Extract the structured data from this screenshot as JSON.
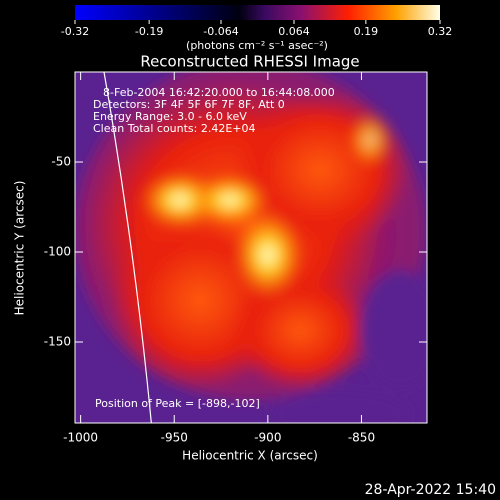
{
  "chart_data": {
    "type": "image",
    "title": "Reconstructed RHESSI Image",
    "x_label": "Heliocentric X (arcsec)",
    "y_label": "Heliocentric Y (arcsec)",
    "xlim": [
      -1003,
      -815
    ],
    "xticks": [
      -1000,
      -950,
      -900,
      -850
    ],
    "ylim": [
      -195,
      0
    ],
    "yticks": [
      -50,
      -100,
      -150
    ],
    "colorbar": {
      "label": "(photons cm⁻² s⁻¹ asec⁻²)",
      "lim": [
        -0.32,
        0.32
      ],
      "ticks": [
        -0.32,
        -0.19,
        -0.064,
        0.064,
        0.19,
        0.32
      ]
    },
    "annotations": [
      "8-Feb-2004 16:42:20.000 to 16:44:08.000",
      "Detectors: 3F 4F 5F 6F 7F 8F, Att 0",
      "Energy Range: 3.0 - 6.0 keV",
      "Clean     Total counts: 2.42E+04"
    ],
    "peak_label": "Position of Peak = [-898,-102]",
    "timestamp": "28-Apr-2022 15:40"
  }
}
